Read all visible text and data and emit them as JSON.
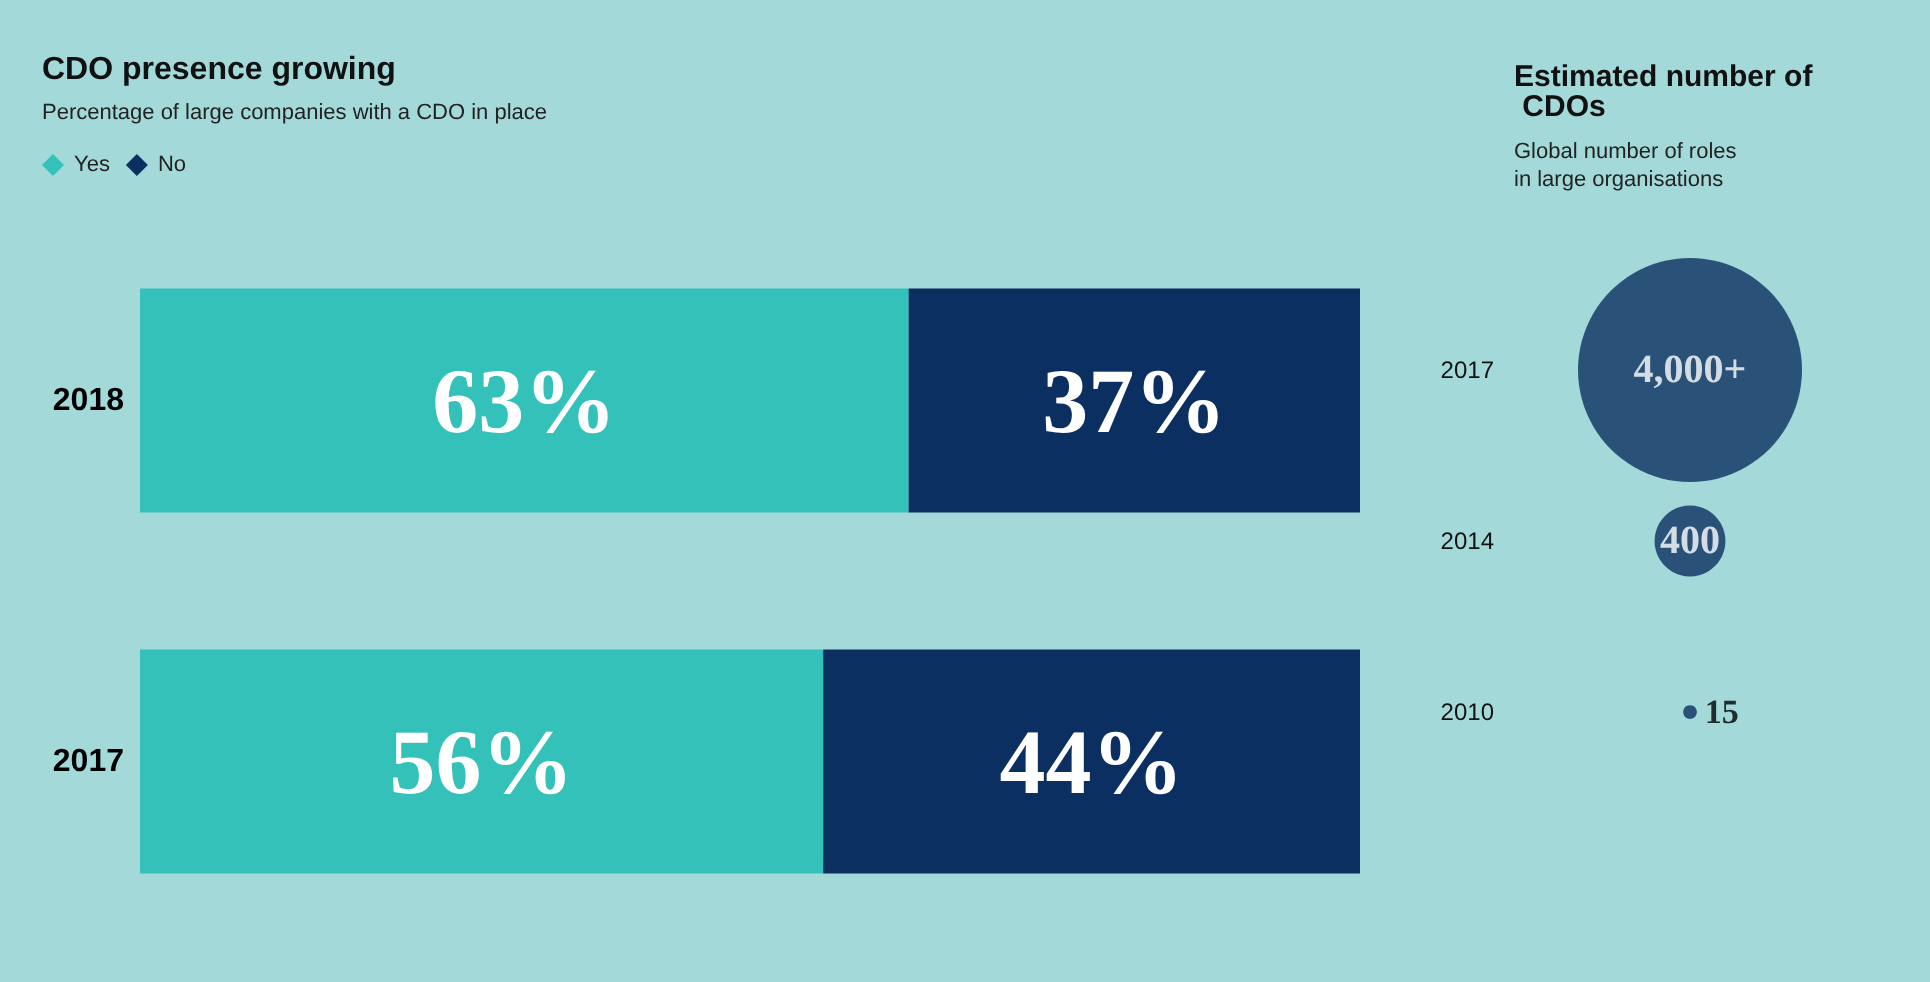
{
  "chart_data": [
    {
      "type": "bar",
      "orientation": "horizontal",
      "stacked": true,
      "title": "CDO presence growing",
      "subtitle": "Percentage of large companies with a CDO in place",
      "categories": [
        "2018",
        "2017"
      ],
      "xlim": [
        0,
        100
      ],
      "tick_labels": "y",
      "legend": "top left",
      "series": [
        {
          "name": "Yes",
          "color": "#33c1b9",
          "values": [
            63,
            56
          ],
          "value_labels": [
            "63%",
            "56%"
          ]
        },
        {
          "name": "No",
          "color": "#0b2f60",
          "values": [
            37,
            44
          ],
          "value_labels": [
            "37%",
            "44%"
          ]
        }
      ]
    },
    {
      "type": "other",
      "title": "Estimated number of CDOs",
      "subtitle": "Global number of roles in large organisations",
      "categories": [
        "2017",
        "2014",
        "2010"
      ],
      "values": [
        4000,
        400,
        15
      ],
      "value_labels": [
        "4,000+",
        "400",
        "15"
      ],
      "color": "#0b2f60"
    }
  ]
}
